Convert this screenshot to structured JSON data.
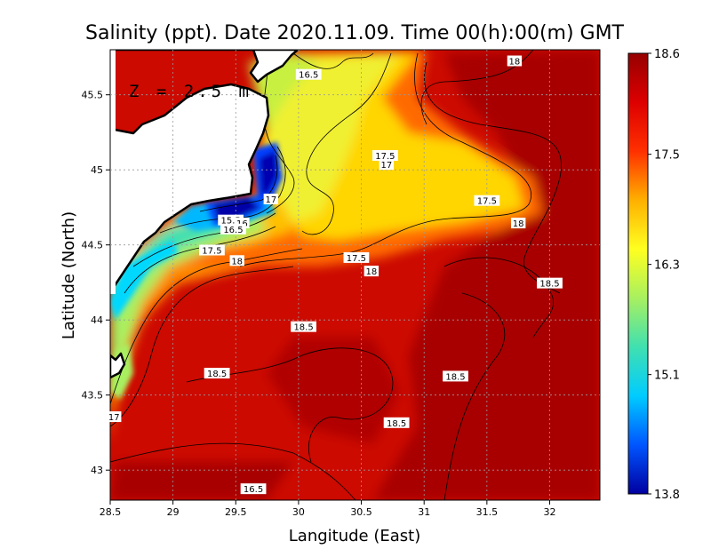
{
  "title": "Salinity (ppt). Date 2020.11.09. Time 00(h):00(m)  GMT",
  "depth_label": "Z = 2.5 m",
  "xlabel": "Langitude (East)",
  "ylabel": "Latitude (North)",
  "x_ticks": [
    "28.5",
    "29",
    "29.5",
    "30",
    "30.5",
    "31",
    "31.5",
    "32"
  ],
  "y_ticks": [
    "45.5",
    "45",
    "44.5",
    "44",
    "43.5",
    "43"
  ],
  "colorbar": {
    "ticks": [
      "18.6",
      "17.5",
      "16.3",
      "15.1",
      "13.8"
    ],
    "colors": [
      "#0000a0",
      "#0055ff",
      "#00ccff",
      "#40e0b0",
      "#a8f060",
      "#ffff20",
      "#ffb000",
      "#ff3000",
      "#dd0000",
      "#960000"
    ]
  },
  "contour_labels": [
    {
      "text": "16.5",
      "lon": 30.08,
      "lat": 45.63
    },
    {
      "text": "18",
      "lon": 31.72,
      "lat": 45.72
    },
    {
      "text": "17.5",
      "lon": 30.69,
      "lat": 45.09
    },
    {
      "text": "17",
      "lon": 30.7,
      "lat": 45.03
    },
    {
      "text": "17",
      "lon": 29.78,
      "lat": 44.8
    },
    {
      "text": "17.5",
      "lon": 31.5,
      "lat": 44.79
    },
    {
      "text": "18",
      "lon": 31.75,
      "lat": 44.64
    },
    {
      "text": "15.5",
      "lon": 29.46,
      "lat": 44.66
    },
    {
      "text": "16",
      "lon": 29.55,
      "lat": 44.64
    },
    {
      "text": "16.5",
      "lon": 29.48,
      "lat": 44.6
    },
    {
      "text": "17.5",
      "lon": 29.31,
      "lat": 44.46
    },
    {
      "text": "18",
      "lon": 29.51,
      "lat": 44.39
    },
    {
      "text": "17.5",
      "lon": 30.46,
      "lat": 44.41
    },
    {
      "text": "18",
      "lon": 30.58,
      "lat": 44.32
    },
    {
      "text": "18.5",
      "lon": 32.0,
      "lat": 44.24
    },
    {
      "text": "18.5",
      "lon": 30.04,
      "lat": 43.95
    },
    {
      "text": "18.5",
      "lon": 29.35,
      "lat": 43.64
    },
    {
      "text": "18.5",
      "lon": 31.25,
      "lat": 43.62
    },
    {
      "text": "17",
      "lon": 28.53,
      "lat": 43.35
    },
    {
      "text": "18.5",
      "lon": 30.78,
      "lat": 43.31
    },
    {
      "text": "16.5",
      "lon": 29.64,
      "lat": 42.87
    }
  ]
}
